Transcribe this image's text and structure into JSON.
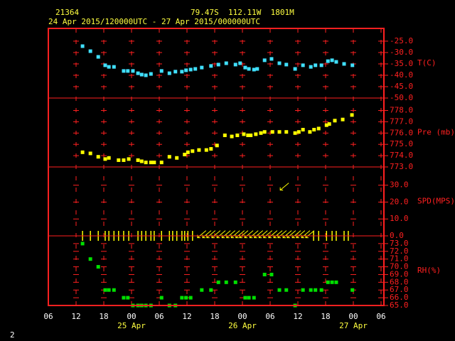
{
  "header": {
    "station": "21364",
    "location": "79.47S  112.11W  1801M",
    "period": "24 Apr 2015/120000UTC - 27 Apr 2015/000000UTC"
  },
  "page_number": "2",
  "x_axis": {
    "xlim": [
      0,
      72
    ],
    "xticks": [
      {
        "value": 0,
        "label": "06"
      },
      {
        "value": 6,
        "label": "12"
      },
      {
        "value": 12,
        "label": "18"
      },
      {
        "value": 18,
        "label": "00"
      },
      {
        "value": 24,
        "label": "06"
      },
      {
        "value": 30,
        "label": "12"
      },
      {
        "value": 36,
        "label": "18"
      },
      {
        "value": 42,
        "label": "00"
      },
      {
        "value": 48,
        "label": "06"
      },
      {
        "value": 54,
        "label": "12"
      },
      {
        "value": 60,
        "label": "18"
      },
      {
        "value": 66,
        "label": "00"
      },
      {
        "value": 72,
        "label": "06"
      }
    ],
    "date_labels": [
      {
        "value": 18,
        "label": "25 Apr"
      },
      {
        "value": 42,
        "label": "26 Apr"
      },
      {
        "value": 66,
        "label": "27 Apr"
      }
    ]
  },
  "chart_data": [
    {
      "type": "scatter",
      "ylabel": "T(C)",
      "color": "#40e0ff",
      "ylim": [
        -50,
        -19.4
      ],
      "yticks": [
        {
          "value": -25,
          "label": "-25.0"
        },
        {
          "value": -30,
          "label": "-30.0"
        },
        {
          "value": -35,
          "label": "-35.0"
        },
        {
          "value": -40,
          "label": "-40.0"
        },
        {
          "value": -45,
          "label": "-45.0"
        },
        {
          "value": -50,
          "label": "-50.0"
        }
      ],
      "x": [
        7.4,
        9.1,
        10.8,
        12.3,
        13.1,
        14.2,
        16.3,
        17.2,
        18.3,
        19.4,
        20.2,
        21.1,
        22.2,
        24.5,
        26.2,
        27.5,
        28.9,
        29.8,
        30.8,
        31.8,
        33.2,
        35.2,
        36.8,
        38.5,
        40.5,
        41.5,
        42.6,
        43.4,
        44.5,
        45.2,
        46.8,
        48.3,
        50.0,
        51.5,
        53.4,
        55.1,
        56.8,
        57.8,
        59.1,
        60.5,
        61.4,
        62.3,
        64.0,
        65.8
      ],
      "values": [
        -27.2,
        -29.4,
        -31.9,
        -35.6,
        -36.3,
        -36.3,
        -38.1,
        -38.1,
        -38.1,
        -39.1,
        -39.7,
        -40.0,
        -39.4,
        -38.1,
        -39.1,
        -38.4,
        -38.4,
        -37.8,
        -37.5,
        -37.2,
        -36.6,
        -35.9,
        -35.3,
        -34.7,
        -35.3,
        -34.7,
        -36.6,
        -37.2,
        -37.5,
        -37.2,
        -33.4,
        -32.8,
        -34.7,
        -35.3,
        -37.2,
        -35.6,
        -36.3,
        -35.6,
        -35.6,
        -33.8,
        -33.4,
        -34.1,
        -35.0,
        -35.6
      ]
    },
    {
      "type": "scatter",
      "ylabel": "Pre (mb)",
      "color": "#ffff00",
      "ylim": [
        773,
        779.1
      ],
      "yticks": [
        {
          "value": 778,
          "label": "778.0"
        },
        {
          "value": 777,
          "label": "777.0"
        },
        {
          "value": 776,
          "label": "776.0"
        },
        {
          "value": 775,
          "label": "775.0"
        },
        {
          "value": 774,
          "label": "774.0"
        },
        {
          "value": 773,
          "label": "773.0"
        }
      ],
      "x": [
        7.4,
        9.1,
        10.8,
        12.3,
        13.1,
        15.2,
        16.3,
        17.4,
        19.4,
        20.2,
        21.1,
        22.2,
        22.9,
        24.5,
        26.2,
        27.8,
        29.5,
        30.2,
        31.2,
        32.6,
        34.2,
        35.2,
        36.5,
        38.2,
        39.7,
        40.9,
        42.3,
        43.2,
        43.8,
        44.9,
        46.0,
        46.8,
        48.5,
        50.0,
        51.5,
        53.4,
        54.2,
        55.1,
        56.6,
        57.5,
        58.5,
        60.2,
        60.8,
        62.0,
        63.7,
        65.7
      ],
      "values": [
        774.3,
        774.2,
        773.9,
        773.7,
        773.8,
        773.6,
        773.6,
        773.7,
        773.6,
        773.5,
        773.4,
        773.4,
        773.4,
        773.4,
        773.9,
        773.8,
        774.1,
        774.3,
        774.4,
        774.5,
        774.5,
        774.6,
        774.9,
        775.8,
        775.7,
        775.8,
        775.9,
        775.8,
        775.8,
        775.9,
        776.0,
        776.1,
        776.1,
        776.1,
        776.1,
        776.0,
        776.1,
        776.3,
        776.1,
        776.3,
        776.4,
        776.7,
        776.8,
        777.1,
        777.2,
        777.6
      ]
    },
    {
      "type": "wind",
      "ylabel": "SPD(MPS)",
      "color": "#ffff00",
      "ylim": [
        0,
        40.8
      ],
      "yticks": [
        {
          "value": 30,
          "label": "30.0"
        },
        {
          "value": 20,
          "label": "20.0"
        },
        {
          "value": 10,
          "label": "10.0"
        },
        {
          "value": 0,
          "label": "0.0"
        }
      ],
      "x": [
        7.4,
        9.1,
        10.8,
        12.3,
        13.1,
        14.2,
        15.2,
        16.3,
        17.4,
        19.4,
        20.2,
        21.1,
        22.2,
        22.9,
        24.5,
        26.2,
        26.9,
        27.8,
        28.9,
        29.5,
        30.2,
        31.2,
        33.2,
        34.3,
        35.2,
        36.3,
        37.4,
        38.5,
        39.5,
        40.5,
        41.5,
        42.3,
        43.4,
        44.5,
        45.5,
        46.5,
        47.5,
        48.6,
        49.7,
        50.6,
        51.1,
        51.7,
        52.6,
        53.7,
        54.6,
        55.7,
        56.6,
        57.4,
        58.5,
        60.2,
        61.4,
        62.3,
        64.0,
        64.9
      ],
      "values": [
        0,
        0,
        0,
        0,
        0,
        0,
        0,
        0,
        0,
        0,
        0,
        0,
        0,
        0,
        0,
        0,
        0,
        0,
        0,
        0,
        0,
        0,
        1,
        1,
        1,
        1,
        1,
        1,
        1,
        1,
        1,
        1,
        1,
        1,
        1,
        1,
        1,
        1,
        1,
        1,
        29.2,
        1,
        1,
        1,
        1,
        1,
        1,
        0,
        0,
        0,
        0,
        0,
        0,
        0
      ]
    },
    {
      "type": "scatter",
      "ylabel": "RH(%)",
      "color": "#00e000",
      "ylim": [
        65,
        74
      ],
      "yticks": [
        {
          "value": 73,
          "label": "73.0"
        },
        {
          "value": 72,
          "label": "72.0"
        },
        {
          "value": 71,
          "label": "71.0"
        },
        {
          "value": 70,
          "label": "70.0"
        },
        {
          "value": 69,
          "label": "69.0"
        },
        {
          "value": 68,
          "label": "68.0"
        },
        {
          "value": 67,
          "label": "67.0"
        },
        {
          "value": 66,
          "label": "66.0"
        },
        {
          "value": 65,
          "label": "65.0"
        }
      ],
      "x": [
        7.4,
        9.1,
        10.8,
        12.3,
        13.1,
        14.2,
        16.3,
        17.2,
        18.3,
        19.4,
        20.2,
        21.1,
        22.2,
        24.5,
        26.2,
        27.5,
        28.9,
        29.8,
        30.8,
        33.2,
        35.2,
        36.8,
        38.5,
        40.5,
        42.6,
        43.4,
        44.5,
        46.8,
        48.3,
        50.0,
        51.5,
        53.4,
        55.1,
        56.8,
        57.8,
        59.1,
        60.5,
        61.4,
        62.3,
        65.8
      ],
      "values": [
        73,
        71,
        70,
        67,
        67,
        67,
        66,
        66,
        65,
        65,
        65,
        65,
        65,
        66,
        65,
        65,
        66,
        66,
        66,
        67,
        67,
        68,
        68,
        68,
        66,
        66,
        66,
        69,
        69,
        67,
        67,
        65,
        67,
        67,
        67,
        67,
        68,
        68,
        68,
        67
      ]
    }
  ]
}
